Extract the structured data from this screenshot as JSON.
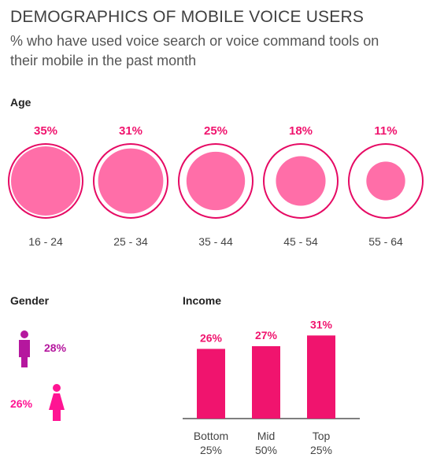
{
  "header": {
    "title": "DEMOGRAPHICS OF MOBILE VOICE USERS",
    "subtitle": "% who have used voice search or voice command tools on their mobile in the past month"
  },
  "colors": {
    "pink": "#ff6ea8",
    "magenta": "#f0146e",
    "ring": "#e60a64",
    "male": "#b5179e",
    "female": "#ff1493"
  },
  "chart_data": [
    {
      "type": "bubble",
      "title": "Age",
      "categories": [
        "16 - 24",
        "25 - 34",
        "35 - 44",
        "45 - 54",
        "55 - 64"
      ],
      "values": [
        35,
        31,
        25,
        18,
        11
      ],
      "labels": [
        "35%",
        "31%",
        "25%",
        "18%",
        "11%"
      ],
      "max": 35
    },
    {
      "type": "pictogram",
      "title": "Gender",
      "series": [
        {
          "icon": "male-icon",
          "value": 28,
          "label": "28%"
        },
        {
          "icon": "female-icon",
          "value": 26,
          "label": "26%"
        }
      ]
    },
    {
      "type": "bar",
      "title": "Income",
      "categories": [
        [
          "Bottom",
          "25%"
        ],
        [
          "Mid",
          "50%"
        ],
        [
          "Top",
          "25%"
        ]
      ],
      "values": [
        26,
        27,
        31
      ],
      "labels": [
        "26%",
        "27%",
        "31%"
      ],
      "ylim": [
        0,
        35
      ]
    }
  ]
}
